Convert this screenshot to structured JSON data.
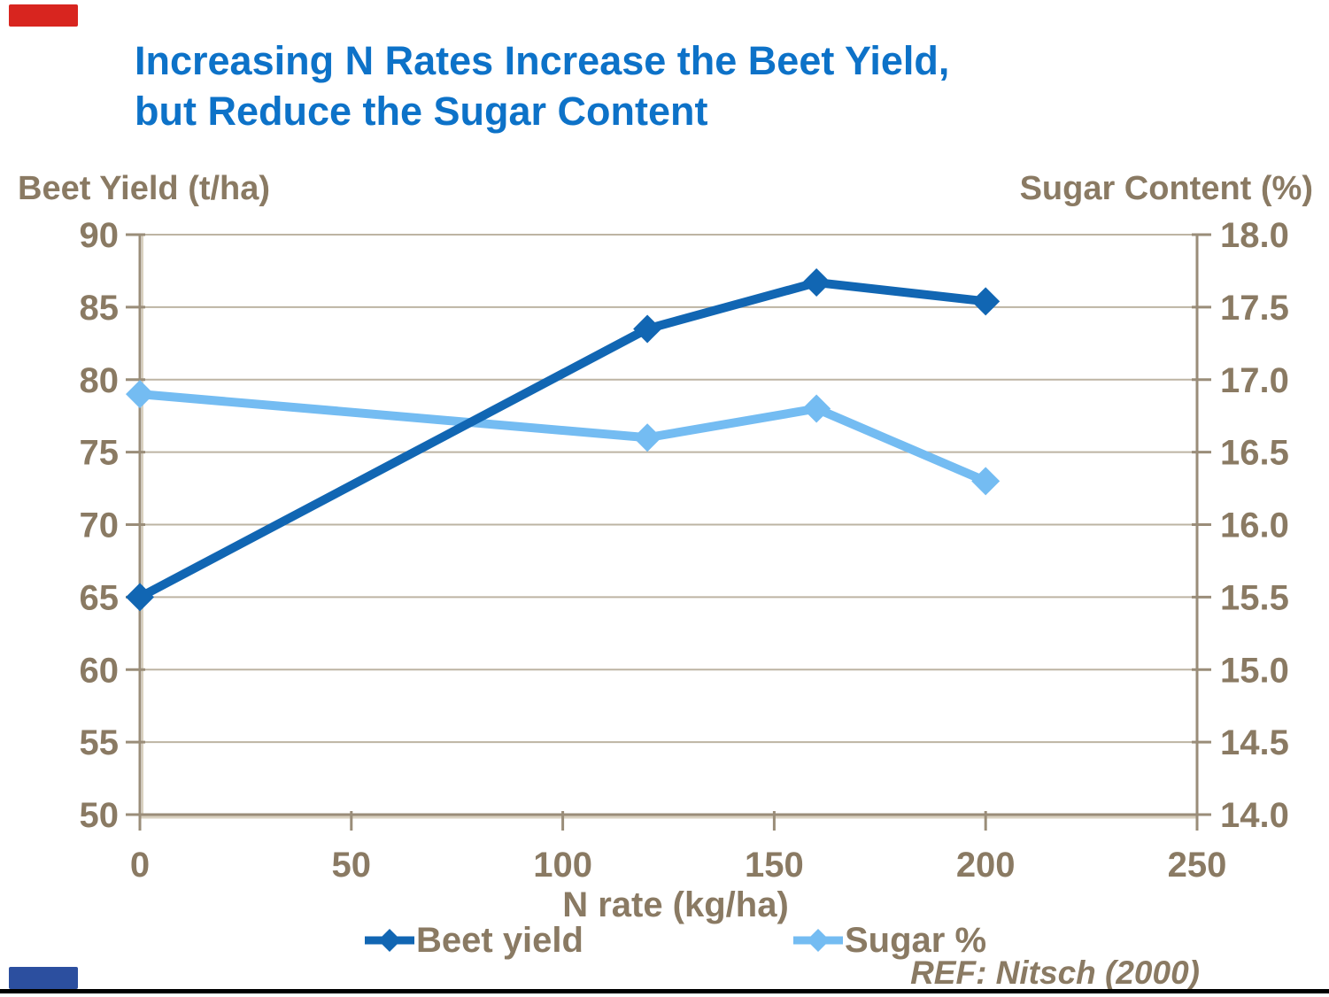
{
  "title": {
    "line1": "Increasing N Rates Increase the Beet Yield,",
    "line2": "but Reduce the Sugar Content",
    "color": "#0d72c8"
  },
  "axis_titles": {
    "left": "Beet Yield (t/ha)",
    "right": "Sugar Content (%)",
    "bottom": "N rate (kg/ha)"
  },
  "legend": {
    "items": [
      {
        "label": "Beet yield",
        "color": "#1166b3"
      },
      {
        "label": "Sugar %",
        "color": "#74bcf2"
      }
    ]
  },
  "reference": "REF: Nitsch (2000)",
  "colors": {
    "text_brown": "#8a7a63",
    "gridline": "#bdb4a3",
    "axis_line": "#9a8d79",
    "axis_highlight": "#d9d1c0",
    "beet_line": "#1166b3",
    "sugar_line": "#74bcf2",
    "title_blue": "#0d72c8",
    "top_accent": "#d8251f",
    "bottom_accent": "#2c4f9f",
    "bottom_rule": "#000000"
  },
  "chart_data": {
    "type": "line",
    "x": [
      0,
      120,
      160,
      200
    ],
    "series": [
      {
        "name": "Beet yield",
        "axis": "left",
        "color": "#1166b3",
        "values": [
          65,
          83.5,
          86.7,
          85.4
        ]
      },
      {
        "name": "Sugar %",
        "axis": "right",
        "color": "#74bcf2",
        "values": [
          16.9,
          16.6,
          16.8,
          16.3
        ]
      }
    ],
    "title": "Increasing N Rates Increase the Beet Yield, but Reduce the Sugar Content",
    "xlabel": "N rate (kg/ha)",
    "ylabel_left": "Beet Yield (t/ha)",
    "ylabel_right": "Sugar Content (%)",
    "xlim": [
      0,
      250
    ],
    "x_ticks": [
      0,
      50,
      100,
      150,
      200,
      250
    ],
    "ylim_left": [
      50,
      90
    ],
    "y_ticks_left": [
      50,
      55,
      60,
      65,
      70,
      75,
      80,
      85,
      90
    ],
    "ylim_right": [
      14.0,
      18.0
    ],
    "y_ticks_right": [
      14.0,
      14.5,
      15.0,
      15.5,
      16.0,
      16.5,
      17.0,
      17.5,
      18.0
    ],
    "grid": "horizontal",
    "legend_position": "bottom",
    "marker": "diamond",
    "source": "REF: Nitsch (2000)"
  }
}
